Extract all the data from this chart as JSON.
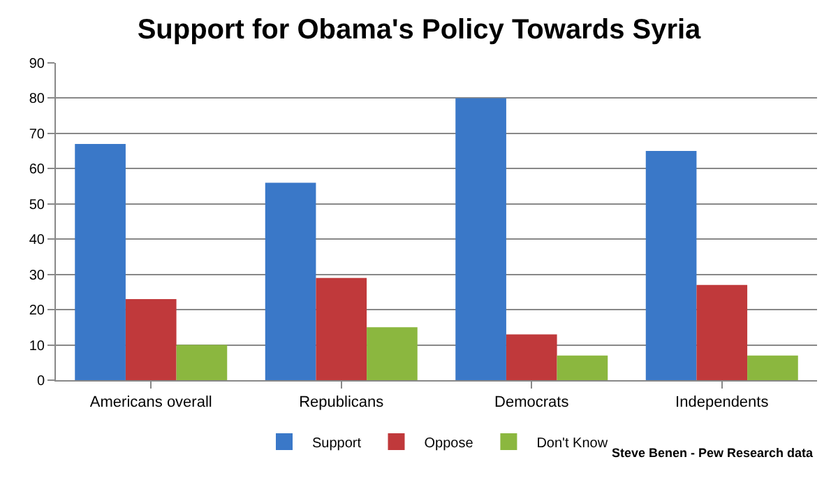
{
  "chart_data": {
    "type": "bar",
    "title": "Support for Obama's Policy Towards Syria",
    "categories": [
      "Americans overall",
      "Republicans",
      "Democrats",
      "Independents"
    ],
    "series": [
      {
        "name": "Support",
        "color": "#3a78c8",
        "values": [
          67,
          56,
          80,
          65
        ]
      },
      {
        "name": "Oppose",
        "color": "#c0393b",
        "values": [
          23,
          29,
          13,
          27
        ]
      },
      {
        "name": "Don't Know",
        "color": "#8bb73f",
        "values": [
          10,
          15,
          7,
          7
        ]
      }
    ],
    "ylim": [
      0,
      90
    ],
    "yticks": [
      0,
      10,
      20,
      30,
      40,
      50,
      60,
      70,
      80,
      90
    ],
    "grid": "y",
    "legend": "bottom",
    "annotations": [
      "Steve Benen - Pew Research data"
    ]
  }
}
